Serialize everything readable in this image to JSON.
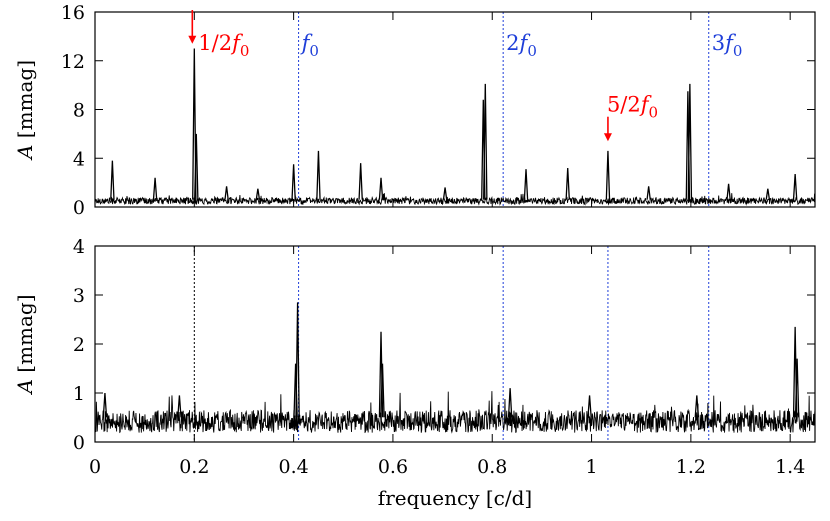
{
  "chart_data": [
    {
      "type": "line",
      "panel": "top",
      "ylabel_symbol": "A",
      "ylabel_unit": "[mmag]",
      "ylim": [
        0,
        16
      ],
      "yticks": [
        0,
        4,
        8,
        12,
        16
      ],
      "xlim": [
        0,
        1.45
      ],
      "x_tick_labels_shown": false,
      "noise_level": 0.5,
      "series": [
        {
          "color": "#000000",
          "peaks": [
            {
              "x": 0.035,
              "y": 3.8
            },
            {
              "x": 0.121,
              "y": 2.4
            },
            {
              "x": 0.2,
              "y": 13.0
            },
            {
              "x": 0.204,
              "y": 6.0
            },
            {
              "x": 0.265,
              "y": 1.7
            },
            {
              "x": 0.328,
              "y": 1.5
            },
            {
              "x": 0.4,
              "y": 3.5
            },
            {
              "x": 0.45,
              "y": 4.6
            },
            {
              "x": 0.535,
              "y": 3.6
            },
            {
              "x": 0.576,
              "y": 2.4
            },
            {
              "x": 0.705,
              "y": 1.6
            },
            {
              "x": 0.782,
              "y": 8.8
            },
            {
              "x": 0.786,
              "y": 10.1
            },
            {
              "x": 0.868,
              "y": 3.1
            },
            {
              "x": 0.952,
              "y": 3.2
            },
            {
              "x": 1.033,
              "y": 4.6
            },
            {
              "x": 1.115,
              "y": 1.7
            },
            {
              "x": 1.194,
              "y": 9.5
            },
            {
              "x": 1.198,
              "y": 10.1
            },
            {
              "x": 1.276,
              "y": 1.9
            },
            {
              "x": 1.355,
              "y": 1.5
            },
            {
              "x": 1.41,
              "y": 2.7
            }
          ]
        }
      ],
      "vlines": [
        {
          "x": 0.41,
          "color": "#1f3fd9"
        },
        {
          "x": 0.822,
          "color": "#1f3fd9"
        },
        {
          "x": 1.236,
          "color": "#1f3fd9"
        }
      ],
      "annotations": [
        {
          "prefix": "1/2",
          "sym": "f",
          "sub": "0",
          "color": "#ff0000",
          "x": 0.2,
          "arrow": true,
          "arrow_from_y": 16,
          "arrow_to_y": 13.4
        },
        {
          "prefix": "",
          "sym": "f",
          "sub": "0",
          "color": "#1f3fd9",
          "x": 0.41,
          "arrow": false
        },
        {
          "prefix": "2",
          "sym": "f",
          "sub": "0",
          "color": "#1f3fd9",
          "x": 0.822,
          "arrow": false
        },
        {
          "prefix": "3",
          "sym": "f",
          "sub": "0",
          "color": "#1f3fd9",
          "x": 1.236,
          "arrow": false
        },
        {
          "prefix": "5/2",
          "sym": "f",
          "sub": "0",
          "color": "#ff0000",
          "x": 1.033,
          "arrow": true,
          "arrow_from_y": 7.9,
          "arrow_to_y": 5.4
        }
      ]
    },
    {
      "type": "line",
      "panel": "bottom",
      "ylabel_symbol": "A",
      "ylabel_unit": "[mmag]",
      "ylim": [
        0,
        4
      ],
      "yticks": [
        0,
        1,
        2,
        3,
        4
      ],
      "xlim": [
        0,
        1.45
      ],
      "xticks": [
        0,
        0.2,
        0.4,
        0.6,
        0.8,
        1,
        1.2,
        1.4
      ],
      "xtick_labels": [
        "0",
        "0.2",
        "0.4",
        "0.6",
        "0.8",
        "1",
        "1.2",
        "1.4"
      ],
      "xlabel": "frequency [c/d]",
      "noise_level": 0.42,
      "series": [
        {
          "color": "#000000",
          "peaks": [
            {
              "x": 0.408,
              "y": 2.85
            },
            {
              "x": 0.404,
              "y": 1.6
            },
            {
              "x": 0.576,
              "y": 2.25
            },
            {
              "x": 0.579,
              "y": 1.6
            },
            {
              "x": 0.836,
              "y": 1.1
            },
            {
              "x": 0.996,
              "y": 0.95
            },
            {
              "x": 1.212,
              "y": 0.95
            },
            {
              "x": 1.41,
              "y": 2.35
            },
            {
              "x": 1.414,
              "y": 1.7
            },
            {
              "x": 0.02,
              "y": 1.0
            },
            {
              "x": 0.17,
              "y": 0.95
            }
          ]
        }
      ],
      "vlines": [
        {
          "x": 0.2,
          "color": "#000000"
        },
        {
          "x": 0.41,
          "color": "#1f3fd9"
        },
        {
          "x": 0.822,
          "color": "#1f3fd9"
        },
        {
          "x": 1.033,
          "color": "#1f3fd9"
        },
        {
          "x": 1.236,
          "color": "#1f3fd9"
        }
      ]
    }
  ]
}
